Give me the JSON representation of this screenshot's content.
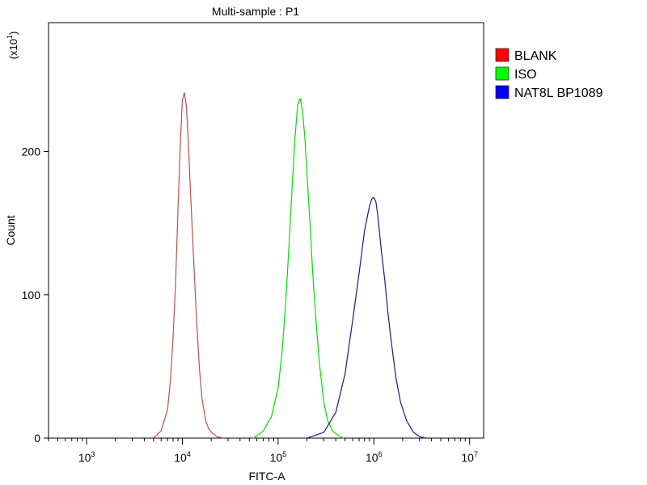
{
  "chart_data": {
    "type": "line",
    "title": "Multi-sample : P1",
    "xlabel": "FITC-A",
    "ylabel": "Count",
    "y_multiplier": {
      "base": "(x10",
      "exp": "1",
      "close": ")"
    },
    "x_scale": "log",
    "xlim": [
      400,
      14000000
    ],
    "ylim": [
      0,
      290
    ],
    "x_ticks": [
      {
        "value": 1000,
        "base": "10",
        "exp": "3"
      },
      {
        "value": 10000,
        "base": "10",
        "exp": "4"
      },
      {
        "value": 100000,
        "base": "10",
        "exp": "5"
      },
      {
        "value": 1000000,
        "base": "10",
        "exp": "6"
      },
      {
        "value": 10000000,
        "base": "10",
        "exp": "7"
      }
    ],
    "y_ticks": [
      0,
      100,
      200
    ],
    "grid": false,
    "legend_position": "right",
    "series": [
      {
        "name": "BLANK",
        "color": "#c0504d",
        "legend_color": "#ff0000",
        "x": [
          5000,
          6000,
          7000,
          7500,
          8000,
          8500,
          9000,
          9500,
          10000,
          10500,
          11000,
          11500,
          12000,
          13000,
          14000,
          15000,
          16000,
          17500,
          19000,
          21000,
          23000,
          27000
        ],
        "y": [
          0,
          5,
          20,
          40,
          70,
          110,
          160,
          205,
          236,
          241,
          232,
          210,
          180,
          130,
          85,
          50,
          28,
          12,
          6,
          3,
          1,
          0
        ]
      },
      {
        "name": "ISO",
        "color": "#00dd00",
        "legend_color": "#00ff00",
        "x": [
          55000,
          70000,
          85000,
          100000,
          110000,
          120000,
          130000,
          140000,
          150000,
          160000,
          170000,
          180000,
          190000,
          200000,
          215000,
          230000,
          250000,
          270000,
          300000,
          330000,
          370000,
          420000,
          480000
        ],
        "y": [
          0,
          5,
          15,
          35,
          60,
          95,
          135,
          175,
          210,
          233,
          237,
          228,
          210,
          185,
          150,
          115,
          80,
          52,
          25,
          12,
          5,
          2,
          0
        ]
      },
      {
        "name": "NAT8L BP1089",
        "color": "#1a1a8c",
        "legend_color": "#0000ff",
        "x": [
          200000,
          300000,
          400000,
          500000,
          600000,
          700000,
          800000,
          900000,
          950000,
          1000000,
          1050000,
          1100000,
          1200000,
          1300000,
          1400000,
          1500000,
          1700000,
          1900000,
          2200000,
          2600000,
          3000000,
          3500000
        ],
        "y": [
          0,
          4,
          18,
          45,
          82,
          115,
          145,
          162,
          167,
          168,
          165,
          155,
          130,
          110,
          88,
          70,
          42,
          25,
          12,
          4,
          1,
          0
        ]
      }
    ]
  }
}
